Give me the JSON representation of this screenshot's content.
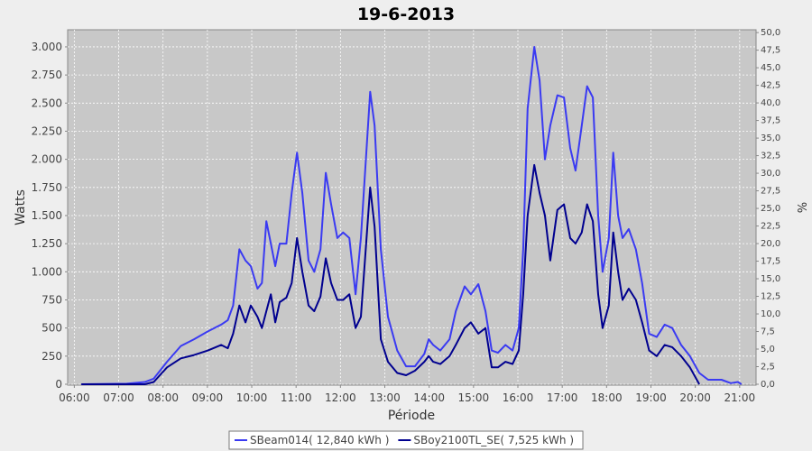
{
  "chart_data": {
    "type": "line",
    "title": "19-6-2013",
    "x_label": "Période",
    "y_label": "Watts",
    "y2_label": "%",
    "grid": true,
    "legend": "bottom",
    "background": "#c8c8c8",
    "x": [
      6.16,
      7.18,
      7.59,
      7.79,
      8.09,
      8.4,
      8.7,
      9.01,
      9.31,
      9.46,
      9.58,
      9.72,
      9.86,
      9.98,
      10.13,
      10.23,
      10.33,
      10.43,
      10.53,
      10.63,
      10.78,
      10.9,
      11.02,
      11.14,
      11.28,
      11.41,
      11.55,
      11.67,
      11.79,
      11.93,
      12.06,
      12.2,
      12.34,
      12.46,
      12.67,
      12.77,
      12.91,
      13.07,
      13.28,
      13.48,
      13.68,
      13.89,
      13.99,
      14.09,
      14.25,
      14.46,
      14.6,
      14.8,
      14.94,
      15.11,
      15.27,
      15.41,
      15.55,
      15.72,
      15.88,
      16.02,
      16.12,
      16.22,
      16.37,
      16.49,
      16.61,
      16.73,
      16.89,
      17.04,
      17.18,
      17.3,
      17.44,
      17.56,
      17.69,
      17.81,
      17.91,
      18.05,
      18.15,
      18.26,
      18.36,
      18.5,
      18.66,
      18.8,
      18.96,
      19.13,
      19.31,
      19.48,
      19.68,
      19.88,
      20.09,
      20.29,
      20.59,
      20.8,
      20.96,
      21.04
    ],
    "series": [
      {
        "name": "SBeam014( 12,840 kWh )",
        "color": "#3a3af2",
        "values": [
          0,
          5,
          20,
          50,
          200,
          340,
          400,
          470,
          530,
          570,
          700,
          1200,
          1100,
          1050,
          850,
          900,
          1450,
          1250,
          1050,
          1250,
          1250,
          1700,
          2060,
          1700,
          1100,
          1000,
          1200,
          1880,
          1600,
          1300,
          1350,
          1300,
          800,
          1300,
          2600,
          2300,
          1200,
          600,
          300,
          160,
          160,
          270,
          400,
          350,
          300,
          400,
          650,
          870,
          800,
          890,
          650,
          300,
          280,
          350,
          300,
          500,
          1200,
          2450,
          3000,
          2700,
          2000,
          2300,
          2570,
          2550,
          2100,
          1900,
          2300,
          2650,
          2550,
          1500,
          1000,
          1300,
          2060,
          1500,
          1300,
          1380,
          1200,
          900,
          450,
          420,
          530,
          500,
          350,
          250,
          100,
          40,
          40,
          10,
          20,
          0
        ]
      },
      {
        "name": "SBoy2100TL_SE( 7,525 kWh )",
        "color": "#00008f",
        "values": [
          0,
          0,
          0,
          20,
          150,
          230,
          260,
          300,
          350,
          320,
          450,
          700,
          550,
          700,
          600,
          500,
          650,
          800,
          550,
          730,
          770,
          900,
          1300,
          1000,
          700,
          650,
          780,
          1120,
          900,
          750,
          750,
          800,
          500,
          600,
          1750,
          1400,
          400,
          200,
          100,
          80,
          120,
          200,
          250,
          200,
          180,
          250,
          350,
          500,
          550,
          450,
          500,
          150,
          150,
          200,
          180,
          300,
          800,
          1500,
          1950,
          1700,
          1500,
          1100,
          1550,
          1600,
          1300,
          1250,
          1350,
          1600,
          1450,
          800,
          500,
          700,
          1350,
          1000,
          750,
          850,
          750,
          550,
          300,
          250,
          350,
          330,
          250,
          150,
          0,
          null,
          null,
          null,
          null,
          null
        ]
      }
    ],
    "xlim": [
      5.85,
      21.37
    ],
    "xticks": [
      {
        "value": 6,
        "label": "06:00"
      },
      {
        "value": 7,
        "label": "07:00"
      },
      {
        "value": 8,
        "label": "08:00"
      },
      {
        "value": 9,
        "label": "09:00"
      },
      {
        "value": 10,
        "label": "10:00"
      },
      {
        "value": 11,
        "label": "11:00"
      },
      {
        "value": 12,
        "label": "12:00"
      },
      {
        "value": 13,
        "label": "13:00"
      },
      {
        "value": 14,
        "label": "14:00"
      },
      {
        "value": 15,
        "label": "15:00"
      },
      {
        "value": 16,
        "label": "16:00"
      },
      {
        "value": 17,
        "label": "17:00"
      },
      {
        "value": 18,
        "label": "18:00"
      },
      {
        "value": 19,
        "label": "19:00"
      },
      {
        "value": 20,
        "label": "20:00"
      },
      {
        "value": 21,
        "label": "21:00"
      }
    ],
    "ylim": [
      0,
      3152
    ],
    "yticks": [
      0,
      250,
      500,
      750,
      {
        "value": 1000,
        "label": "1.000"
      },
      {
        "value": 1250,
        "label": "1.250"
      },
      {
        "value": 1500,
        "label": "1.500"
      },
      {
        "value": 1750,
        "label": "1.750"
      },
      {
        "value": 2000,
        "label": "2.000"
      },
      {
        "value": 2250,
        "label": "2.250"
      },
      {
        "value": 2500,
        "label": "2.500"
      },
      {
        "value": 2750,
        "label": "2.750"
      },
      {
        "value": 3000,
        "label": "3.000"
      }
    ],
    "y2lim": [
      0,
      50.4
    ],
    "y2ticks": [
      {
        "value": 0,
        "label": "0,0"
      },
      {
        "value": 2.5,
        "label": "2,5"
      },
      {
        "value": 5,
        "label": "5,0"
      },
      {
        "value": 7.5,
        "label": "7,5"
      },
      {
        "value": 10,
        "label": "10,0"
      },
      {
        "value": 12.5,
        "label": "12,5"
      },
      {
        "value": 15,
        "label": "15,0"
      },
      {
        "value": 17.5,
        "label": "17,5"
      },
      {
        "value": 20,
        "label": "20,0"
      },
      {
        "value": 22.5,
        "label": "22,5"
      },
      {
        "value": 25,
        "label": "25,0"
      },
      {
        "value": 27.5,
        "label": "27,5"
      },
      {
        "value": 30,
        "label": "30,0"
      },
      {
        "value": 32.5,
        "label": "32,5"
      },
      {
        "value": 35,
        "label": "35,0"
      },
      {
        "value": 37.5,
        "label": "37,5"
      },
      {
        "value": 40,
        "label": "40,0"
      },
      {
        "value": 42.5,
        "label": "42,5"
      },
      {
        "value": 45,
        "label": "45,0"
      },
      {
        "value": 47.5,
        "label": "47,5"
      },
      {
        "value": 50,
        "label": "50,0"
      }
    ]
  }
}
